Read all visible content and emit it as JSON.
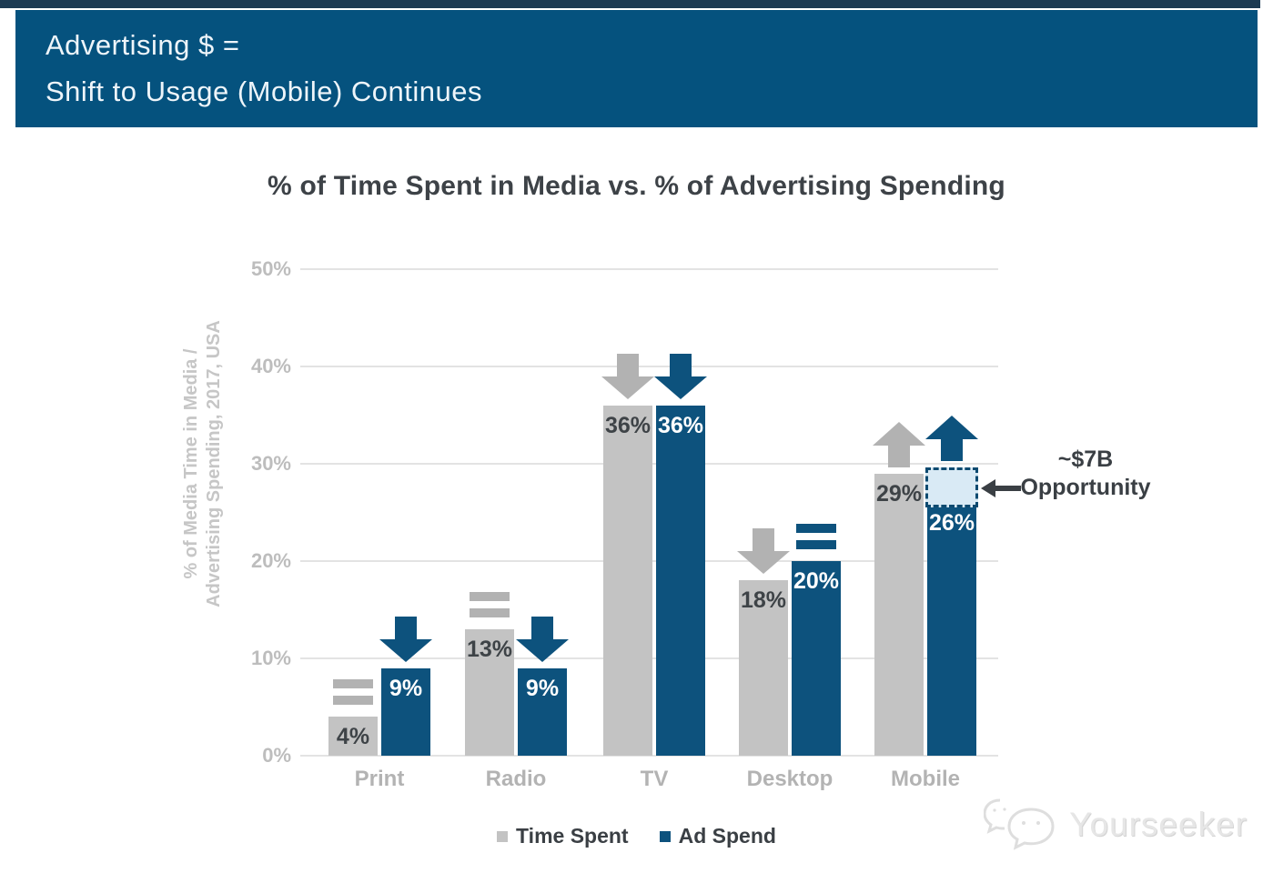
{
  "header": {
    "line1": "Advertising $ =",
    "line2": "Shift to Usage (Mobile) Continues"
  },
  "chart_data": {
    "type": "bar",
    "title": "% of Time Spent in Media vs. % of Advertising Spending",
    "ylabel_lines": [
      "% of Media Time in Media /",
      "Advertising Spending, 2017, USA"
    ],
    "categories": [
      "Print",
      "Radio",
      "TV",
      "Desktop",
      "Mobile"
    ],
    "series": [
      {
        "name": "Time Spent",
        "color": "#c3c3c3",
        "values": [
          4,
          13,
          36,
          18,
          29
        ],
        "labels": [
          "4%",
          "13%",
          "36%",
          "18%",
          "29%"
        ],
        "label_color": "#3e4347",
        "trends": [
          "flat",
          "flat",
          "down",
          "down",
          "up"
        ]
      },
      {
        "name": "Ad Spend",
        "color": "#0d527d",
        "values": [
          9,
          9,
          36,
          20,
          26
        ],
        "labels": [
          "9%",
          "9%",
          "36%",
          "20%",
          "26%"
        ],
        "label_color": "#ffffff",
        "trends": [
          "down",
          "down",
          "down",
          "flat",
          "up"
        ]
      }
    ],
    "ytick_labels": [
      "0%",
      "10%",
      "20%",
      "30%",
      "40%",
      "50%"
    ],
    "ylim": [
      0,
      50
    ],
    "grid": true,
    "legend_position": "bottom",
    "annotation": {
      "line1": "~$7B",
      "line2": "Opportunity",
      "category": "Mobile",
      "series": "Ad Spend",
      "gap_from_pct": 26,
      "gap_to_pct": 29
    }
  },
  "legend": {
    "items": [
      {
        "label": "Time Spent",
        "color": "#c3c3c3"
      },
      {
        "label": "Ad Spend",
        "color": "#0d527d"
      }
    ]
  },
  "watermark": {
    "text": "Yourseeker"
  },
  "colors": {
    "header_bg": "#05527e",
    "top_strip": "#1c3a52",
    "indicator_gray": "#b2b2b2",
    "indicator_blue": "#0d527d",
    "grid": "#e3e3e3",
    "axis_text": "#bdbdbd",
    "opportunity_fill": "#d9eaf5",
    "opportunity_border": "#0d4a70",
    "annotation_text": "#3a3f44"
  }
}
